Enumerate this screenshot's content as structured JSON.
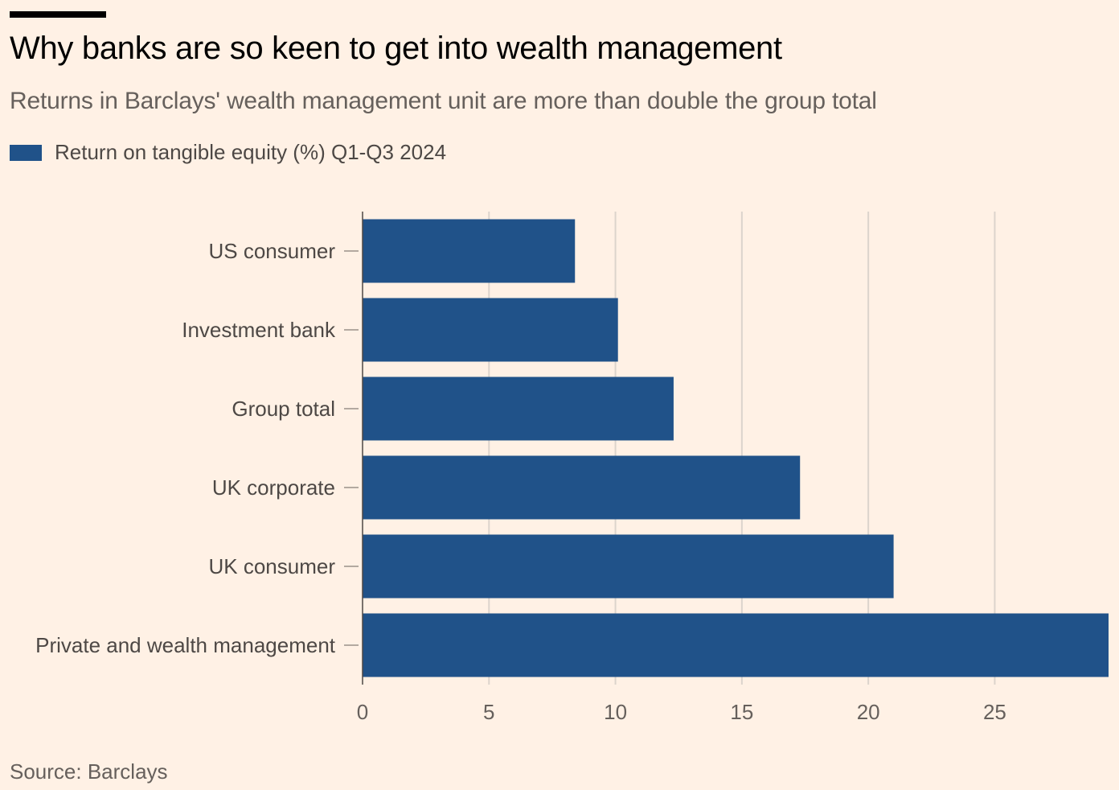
{
  "title": "Why banks are so keen to get into wealth management",
  "subtitle": "Returns in Barclays' wealth management unit are more than double the group total",
  "source": "Source: Barclays",
  "colors": {
    "bar": "#205289",
    "background": "#FFF1E5",
    "grid": "#DCD4CC"
  },
  "chart_data": {
    "type": "bar",
    "orientation": "horizontal",
    "title": "Why banks are so keen to get into wealth management",
    "legend": [
      "Return on tangible equity (%) Q1-Q3 2024"
    ],
    "legend_placement": "top-left",
    "categories": [
      "US consumer",
      "Investment bank",
      "Group total",
      "UK corporate",
      "UK consumer",
      "Private and wealth management"
    ],
    "series": [
      {
        "name": "Return on tangible equity (%) Q1-Q3 2024",
        "values": [
          8.4,
          10.1,
          12.3,
          17.3,
          21.0,
          29.5
        ]
      }
    ],
    "xlim": [
      0,
      29.5
    ],
    "xticks": [
      "0",
      "5",
      "10",
      "15",
      "20",
      "25"
    ],
    "xtick_values": [
      0,
      5,
      10,
      15,
      20,
      25
    ],
    "grid": true,
    "xlabel": "",
    "ylabel": ""
  }
}
